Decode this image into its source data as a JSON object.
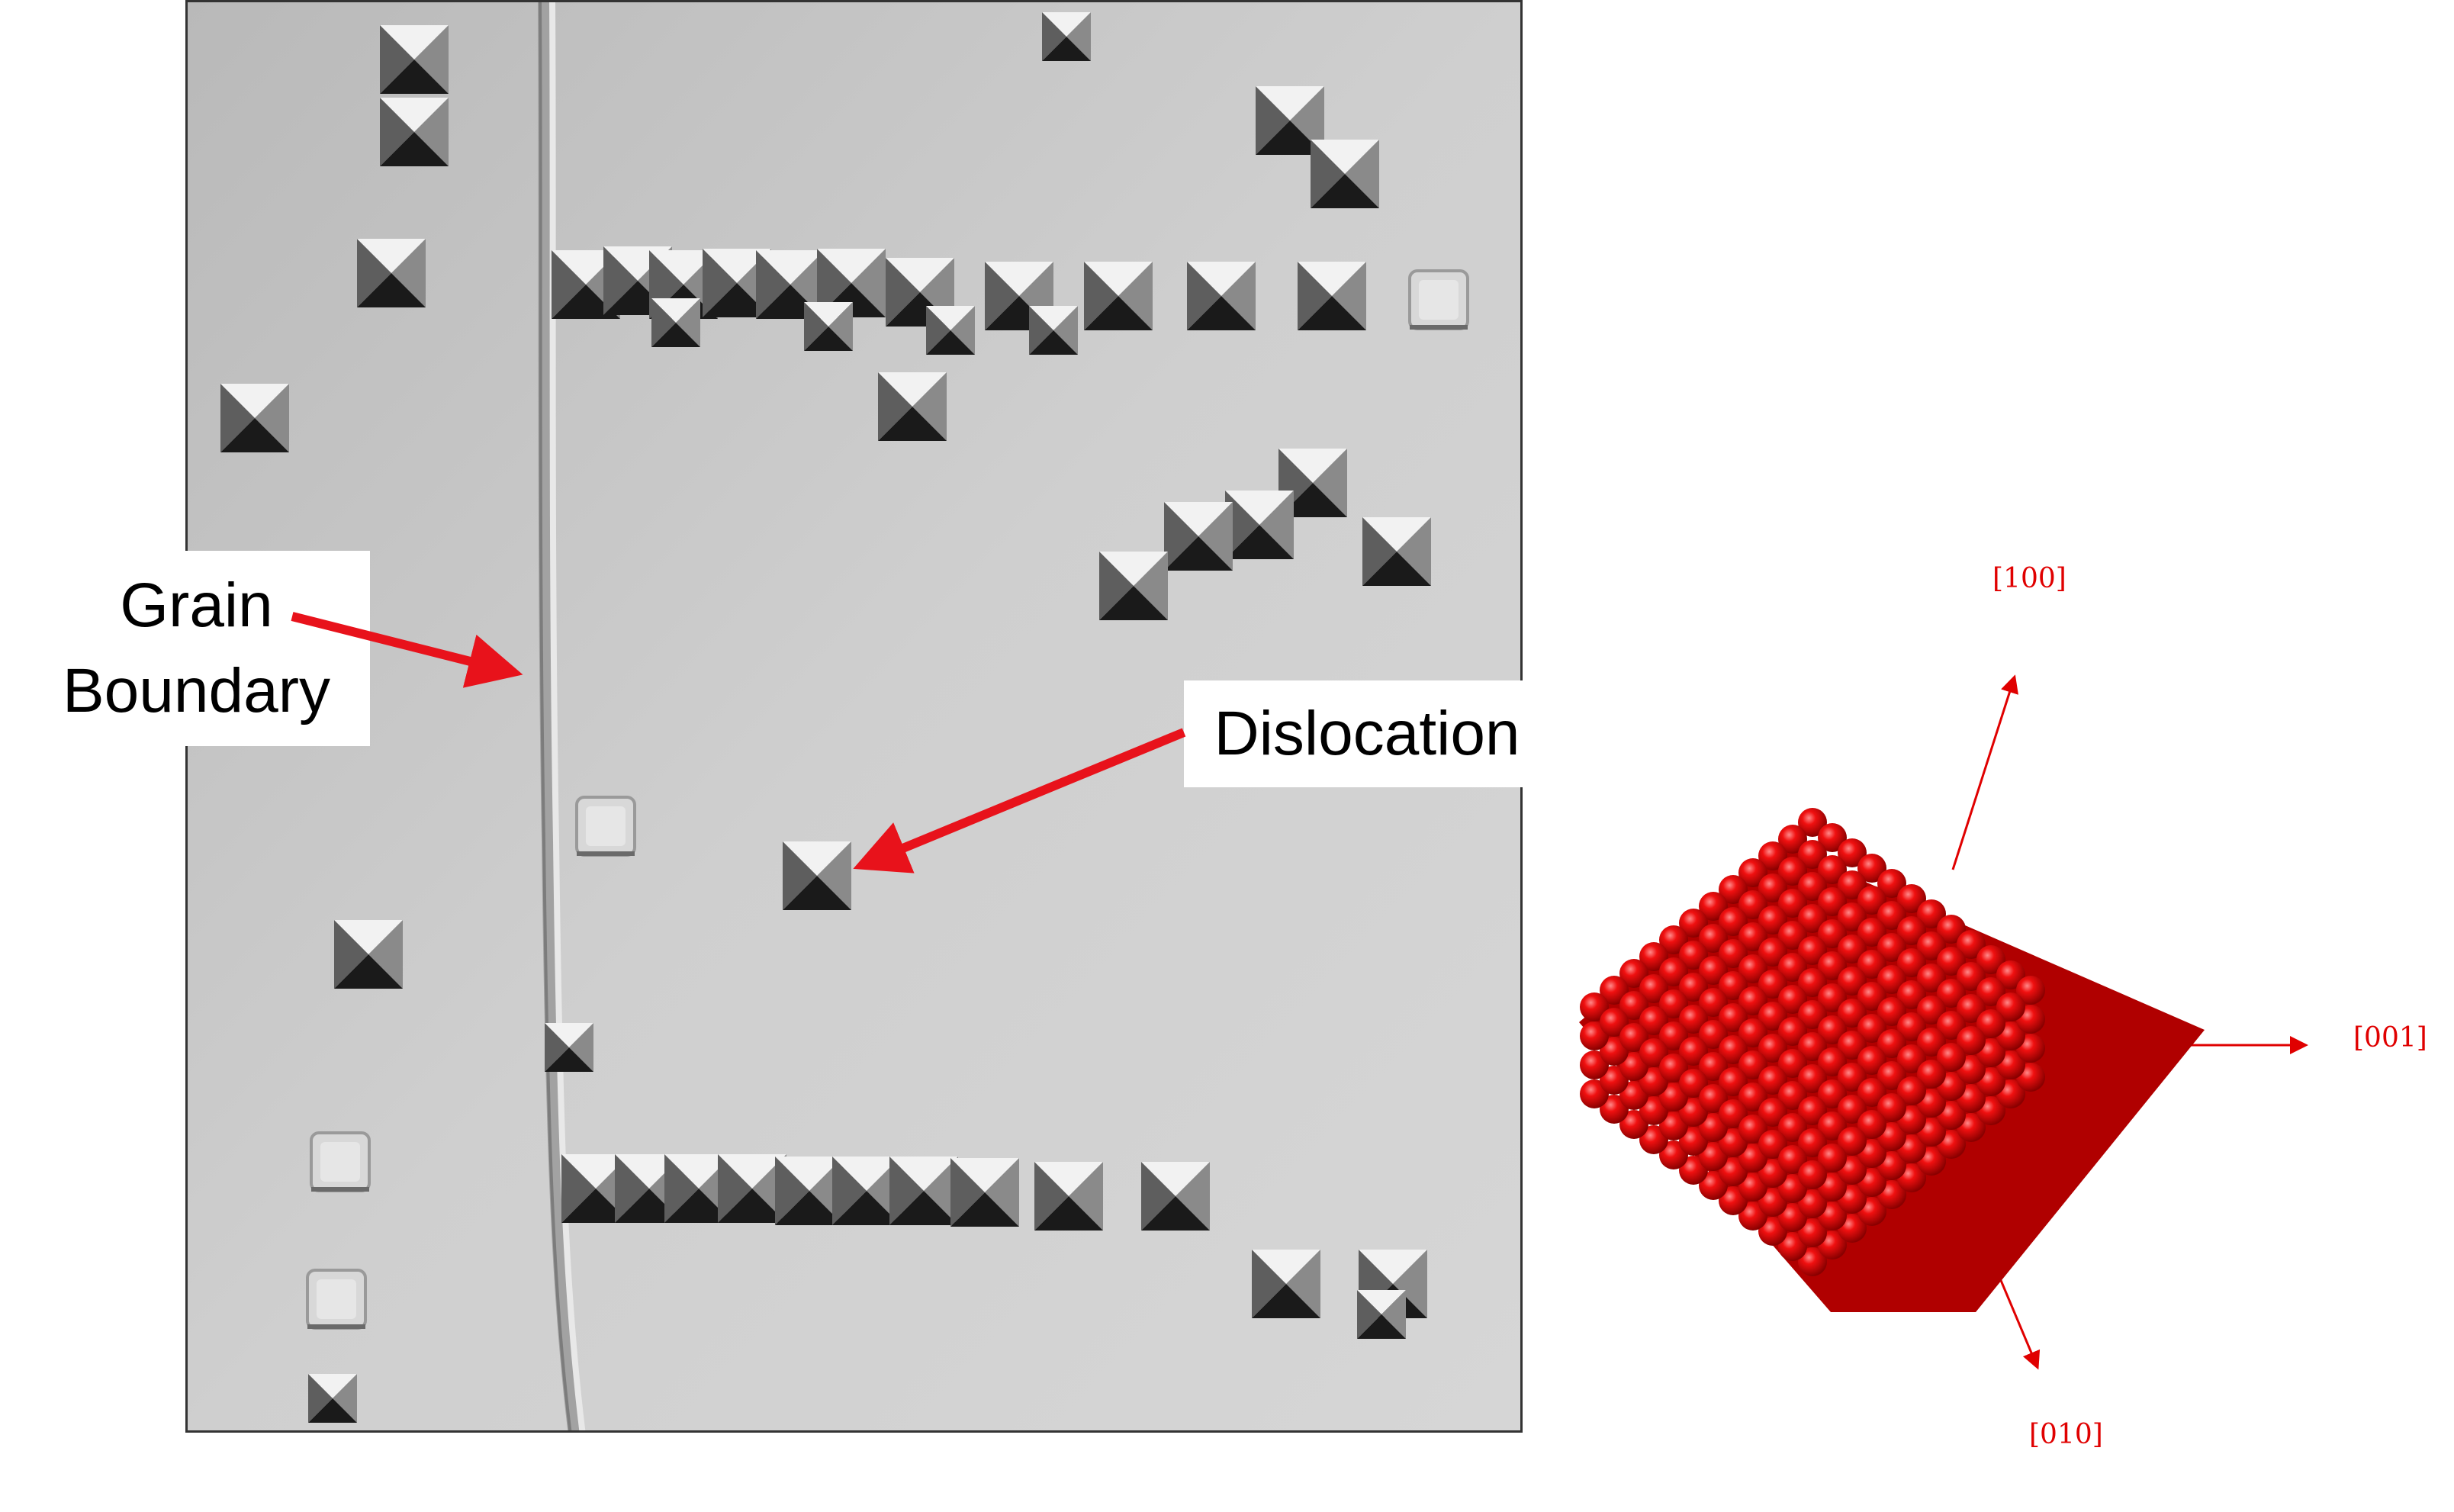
{
  "labels": {
    "grain_boundary_line1": "Grain",
    "grain_boundary_line2": "Boundary",
    "dislocation": "Dislocation"
  },
  "crystal_axes": {
    "a100": "[100]",
    "a001": "[001]",
    "a010": "[010]"
  },
  "colors": {
    "arrow": "#e8121b",
    "atoms": "#e00000",
    "micrograph_bg": "#c9c9c9"
  }
}
